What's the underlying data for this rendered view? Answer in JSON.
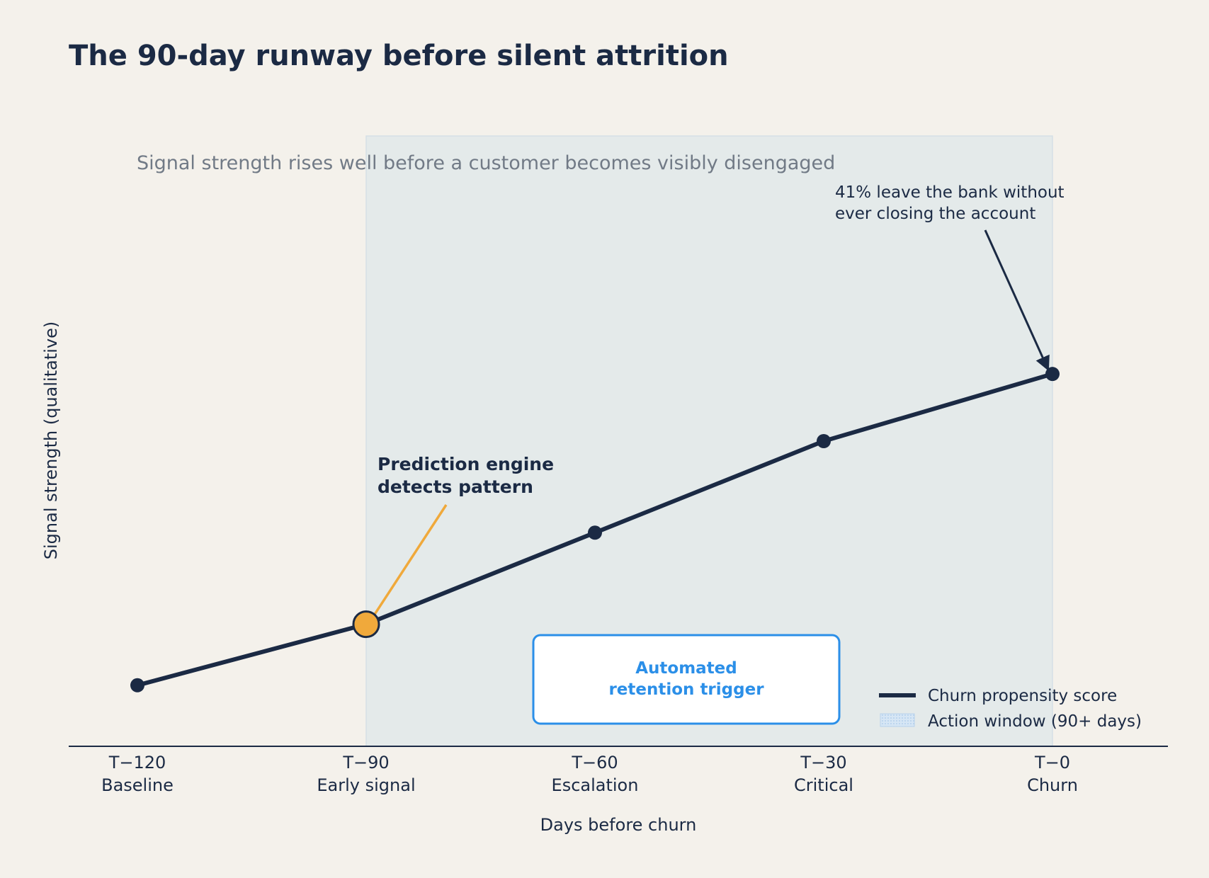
{
  "chart_data": {
    "type": "line",
    "title": "The 90-day runway before silent attrition",
    "subtitle": "Signal strength rises well before a customer becomes visibly disengaged",
    "xlabel": "Days before churn",
    "ylabel": "Signal strength (qualitative)",
    "categories": [
      "T−120",
      "T−90",
      "T−60",
      "T−30",
      "T−0"
    ],
    "category_sublabels": [
      "Baseline",
      "Early signal",
      "Escalation",
      "Critical",
      "Churn"
    ],
    "x": [
      -120,
      -90,
      -60,
      -30,
      0
    ],
    "ylim": [
      0,
      10
    ],
    "grid": false,
    "series": [
      {
        "name": "Churn propensity score",
        "values": [
          1.0,
          2.0,
          3.5,
          5.0,
          6.1
        ]
      }
    ],
    "highlight_point": {
      "x": -90,
      "value": 2.0
    },
    "action_window": {
      "name": "Action window (90+ days)",
      "x_start": -90,
      "x_end": 0
    },
    "annotations": {
      "detect_line1": "Prediction engine",
      "detect_line2": "detects pattern",
      "leave_line1": "41% leave the bank without",
      "leave_line2": "ever closing the account",
      "trigger_line1": "Automated",
      "trigger_line2": "retention trigger"
    },
    "legend_position": "bottom-right",
    "colors": {
      "line": "#1b2a44",
      "highlight": "#f0a93b",
      "window_fill": "#e4eaea",
      "trigger": "#2b8fe8",
      "background": "#f4f1eb"
    }
  }
}
